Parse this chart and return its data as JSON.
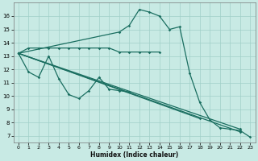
{
  "background_color": "#c8eae4",
  "grid_color": "#a0d0c8",
  "line_color": "#1a6e60",
  "xlabel": "Humidex (Indice chaleur)",
  "xlim": [
    -0.5,
    23.5
  ],
  "ylim": [
    6.5,
    17.0
  ],
  "xticks": [
    0,
    1,
    2,
    3,
    4,
    5,
    6,
    7,
    8,
    9,
    10,
    11,
    12,
    13,
    14,
    15,
    16,
    17,
    18,
    19,
    20,
    21,
    22,
    23
  ],
  "yticks": [
    7,
    8,
    9,
    10,
    11,
    12,
    13,
    14,
    15,
    16
  ],
  "flat_line": {
    "x": [
      0,
      1,
      2,
      3,
      4,
      5,
      6,
      7,
      8,
      9,
      10,
      11,
      12,
      13,
      14
    ],
    "y": [
      13.2,
      13.6,
      13.6,
      13.6,
      13.6,
      13.6,
      13.6,
      13.6,
      13.6,
      13.6,
      13.3,
      13.3,
      13.3,
      13.3,
      13.3
    ]
  },
  "zigzag_line": {
    "x": [
      0,
      1,
      2,
      3,
      4,
      5,
      6,
      7,
      8,
      9,
      10,
      11
    ],
    "y": [
      13.2,
      11.8,
      11.4,
      13.0,
      11.3,
      10.1,
      9.8,
      10.4,
      11.4,
      10.5,
      10.4,
      10.3
    ]
  },
  "linear_lines": [
    {
      "x": [
        0,
        22
      ],
      "y": [
        13.2,
        7.3
      ]
    },
    {
      "x": [
        0,
        22
      ],
      "y": [
        13.2,
        7.5
      ]
    },
    {
      "x": [
        0,
        18
      ],
      "y": [
        13.2,
        8.3
      ]
    }
  ],
  "peak_line": {
    "x": [
      0,
      10,
      11,
      12,
      13,
      14,
      15,
      16,
      17,
      18,
      19,
      20,
      21,
      22,
      23
    ],
    "y": [
      13.2,
      14.8,
      15.3,
      16.5,
      16.3,
      16.0,
      15.0,
      15.2,
      11.7,
      9.5,
      8.2,
      7.6,
      7.5,
      7.4,
      6.9
    ]
  }
}
